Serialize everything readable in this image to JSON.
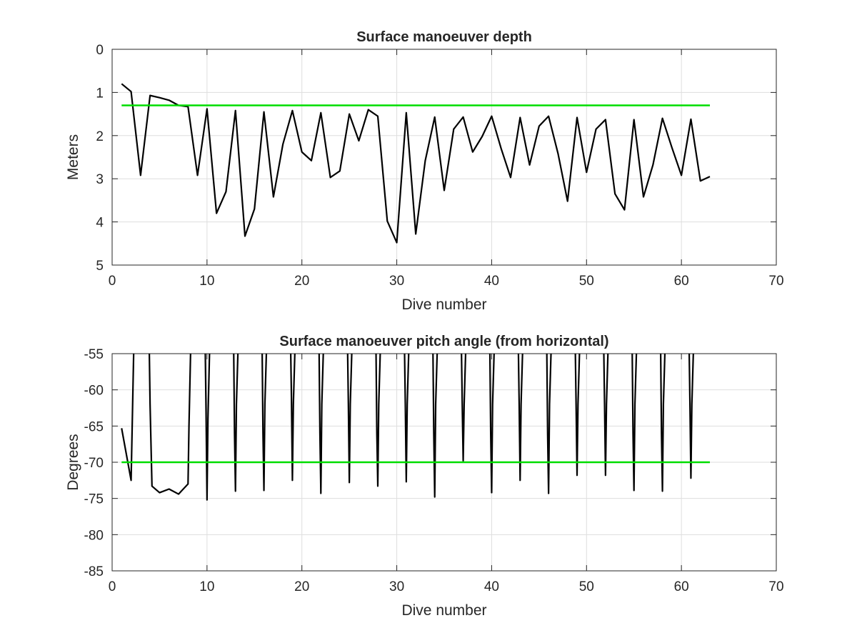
{
  "figure": {
    "colors": {
      "data_line": "#000000",
      "reference_line": "#00dd00",
      "grid": "#dedede",
      "axes": "#262626"
    }
  },
  "chart_data": [
    {
      "type": "line",
      "title": "Surface manoeuver depth",
      "xlabel": "Dive number",
      "ylabel": "Meters",
      "xlim": [
        0,
        70
      ],
      "ylim": [
        0,
        5
      ],
      "y_reversed": true,
      "grid": true,
      "xticks": [
        0,
        10,
        20,
        30,
        40,
        50,
        60,
        70
      ],
      "yticks": [
        0,
        1,
        2,
        3,
        4,
        5
      ],
      "series": [
        {
          "role": "data",
          "color": "#000000",
          "x": [
            1,
            2,
            3,
            4,
            5,
            6,
            7,
            8,
            9,
            10,
            11,
            12,
            13,
            14,
            15,
            16,
            17,
            18,
            19,
            20,
            21,
            22,
            23,
            24,
            25,
            26,
            27,
            28,
            29,
            30,
            31,
            32,
            33,
            34,
            35,
            36,
            37,
            38,
            39,
            40,
            41,
            42,
            43,
            44,
            45,
            46,
            47,
            48,
            49,
            50,
            51,
            52,
            53,
            54,
            55,
            56,
            57,
            58,
            59,
            60,
            61,
            62,
            63
          ],
          "y": [
            0.8,
            0.98,
            2.92,
            1.07,
            1.12,
            1.18,
            1.3,
            1.33,
            2.92,
            1.38,
            3.8,
            3.3,
            1.42,
            4.33,
            3.7,
            1.45,
            3.42,
            2.2,
            1.42,
            2.38,
            2.58,
            1.47,
            2.97,
            2.82,
            1.5,
            2.12,
            1.4,
            1.55,
            3.98,
            4.48,
            1.47,
            4.28,
            2.58,
            1.57,
            3.27,
            1.85,
            1.57,
            2.38,
            2.02,
            1.55,
            2.3,
            2.97,
            1.58,
            2.68,
            1.78,
            1.55,
            2.42,
            3.52,
            1.58,
            2.85,
            1.85,
            1.63,
            3.35,
            3.72,
            1.63,
            3.42,
            2.68,
            1.6,
            2.28,
            2.92,
            1.62,
            3.05,
            2.95
          ]
        },
        {
          "role": "reference",
          "color": "#00dd00",
          "x": [
            1,
            63
          ],
          "y": [
            1.3,
            1.3
          ]
        }
      ]
    },
    {
      "type": "line",
      "title": "Surface manoeuver pitch angle (from horizontal)",
      "xlabel": "Dive number",
      "ylabel": "Degrees",
      "xlim": [
        0,
        70
      ],
      "ylim": [
        -85,
        -55
      ],
      "grid": true,
      "xticks": [
        0,
        10,
        20,
        30,
        40,
        50,
        60,
        70
      ],
      "yticks": [
        -55,
        -60,
        -65,
        -70,
        -75,
        -80,
        -85
      ],
      "series": [
        {
          "role": "data",
          "color": "#000000",
          "x": [
            1,
            2,
            2.3,
            3.9,
            4,
            4.2,
            5,
            6,
            7,
            8,
            8.1,
            8.3,
            9.8,
            9.9,
            10,
            10.1,
            10.3,
            12.8,
            12.9,
            13,
            13.1,
            13.3,
            15.8,
            15.9,
            16,
            16.1,
            16.3,
            18.8,
            18.9,
            19,
            19.1,
            19.3,
            21.8,
            21.9,
            22,
            22.1,
            22.3,
            24.8,
            24.9,
            25,
            25.1,
            25.3,
            27.8,
            27.9,
            28,
            28.1,
            28.3,
            30.8,
            30.9,
            31,
            31.1,
            31.3,
            33.8,
            33.9,
            34,
            34.1,
            34.3,
            36.8,
            36.9,
            37,
            37.1,
            37.3,
            39.8,
            39.9,
            40,
            40.1,
            40.3,
            42.8,
            42.9,
            43,
            43.1,
            43.3,
            45.8,
            45.9,
            46,
            46.1,
            46.3,
            48.8,
            48.9,
            49,
            49.1,
            49.3,
            51.8,
            51.9,
            52,
            52.1,
            52.3,
            54.8,
            54.9,
            55,
            55.1,
            55.3,
            57.8,
            57.9,
            58,
            58.1,
            58.3,
            60.8,
            60.9,
            61,
            61.1,
            61.3
          ],
          "y": [
            -65.3,
            -72.5,
            -53,
            -53,
            -62,
            -73.3,
            -74.2,
            -73.7,
            -74.4,
            -73,
            -65,
            -53,
            -53,
            -63,
            -75.2,
            -64,
            -53,
            -53,
            -66,
            -74,
            -62,
            -53,
            -53,
            -66,
            -73.9,
            -62,
            -53,
            -53,
            -61,
            -72.5,
            -62,
            -53,
            -53,
            -66,
            -74.3,
            -62,
            -53,
            -53,
            -62,
            -72.8,
            -62,
            -53,
            -53,
            -66,
            -73.3,
            -62,
            -53,
            -53,
            -62,
            -72.7,
            -62,
            -53,
            -53,
            -66,
            -74.8,
            -62,
            -53,
            -53,
            -62,
            -69.8,
            -62,
            -53,
            -53,
            -66,
            -74.2,
            -62,
            -53,
            -53,
            -62,
            -72.5,
            -62,
            -53,
            -53,
            -66,
            -74.3,
            -62,
            -53,
            -53,
            -62,
            -71.8,
            -62,
            -53,
            -53,
            -62,
            -71.8,
            -62,
            -53,
            -53,
            -66,
            -73.9,
            -62,
            -53,
            -53,
            -66,
            -74,
            -62,
            -53,
            -53,
            -62,
            -72.2,
            -62,
            -53
          ]
        },
        {
          "role": "reference",
          "color": "#00dd00",
          "x": [
            1,
            63
          ],
          "y": [
            -70,
            -70
          ]
        }
      ]
    }
  ]
}
